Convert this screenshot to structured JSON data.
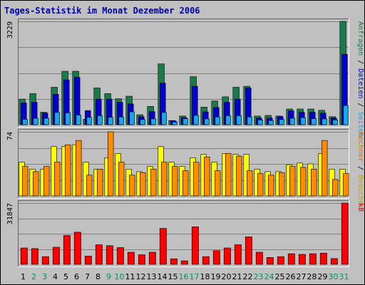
{
  "chart_data": {
    "type": "bar",
    "title": "Tages-Statistik im Monat Dezember 2006",
    "x": [
      "1",
      "2",
      "3",
      "4",
      "5",
      "6",
      "7",
      "8",
      "9",
      "10",
      "11",
      "12",
      "13",
      "14",
      "15",
      "16",
      "17",
      "18",
      "19",
      "20",
      "21",
      "22",
      "23",
      "24",
      "25",
      "26",
      "27",
      "28",
      "29",
      "30",
      "31"
    ],
    "weekend_days": [
      2,
      3,
      9,
      10,
      16,
      17,
      23,
      24,
      30,
      31
    ],
    "panels": [
      {
        "name": "top",
        "ymax_label": "3229",
        "ymax": 3229,
        "right_labels": [
          {
            "text": "Anfragen",
            "color": "#1a7a4a"
          },
          {
            "text": " / ",
            "color": "#000000"
          },
          {
            "text": "Dateien",
            "color": "#0000cc"
          },
          {
            "text": " / ",
            "color": "#000000"
          },
          {
            "text": "Seiten",
            "color": "#1aa7e6"
          }
        ],
        "series": [
          {
            "name": "Anfragen",
            "color": "#1a7a4a",
            "values": [
              800,
              970,
              390,
              1170,
              1670,
              1670,
              170,
              1150,
              970,
              810,
              890,
              310,
              570,
              1900,
              130,
              270,
              1500,
              550,
              740,
              870,
              1170,
              1200,
              270,
              290,
              270,
              490,
              490,
              490,
              450,
              250,
              3229
            ]
          },
          {
            "name": "Dateien",
            "color": "#0000cc",
            "values": [
              680,
              700,
              360,
              950,
              1400,
              1480,
              440,
              800,
              800,
              700,
              650,
              250,
              410,
              1300,
              120,
              220,
              1200,
              400,
              540,
              700,
              800,
              1150,
              210,
              210,
              250,
              430,
              390,
              390,
              360,
              210,
              2200
            ]
          },
          {
            "name": "Seiten",
            "color": "#1aa7e6",
            "values": [
              170,
              200,
              200,
              380,
              370,
              300,
              230,
              280,
              230,
              240,
              400,
              160,
              180,
              380,
              80,
              190,
              290,
              180,
              240,
              280,
              280,
              240,
              150,
              130,
              160,
              200,
              220,
              190,
              180,
              150,
              600
            ]
          }
        ]
      },
      {
        "name": "middle",
        "ymax_label": "74",
        "ymax": 74,
        "right_labels": [
          {
            "text": "Rechner",
            "color": "#e07000"
          },
          {
            "text": " / ",
            "color": "#000000"
          },
          {
            "text": "Besuche",
            "color": "#c8a000"
          }
        ],
        "series": [
          {
            "name": "Besuche",
            "color": "#ffff00",
            "values": [
              39,
              31,
              31,
              57,
              57,
              59,
              39,
              31,
              44,
              49,
              31,
              28,
              34,
              57,
              39,
              34,
              44,
              48,
              39,
              49,
              48,
              48,
              31,
              28,
              28,
              36,
              38,
              37,
              49,
              31,
              31
            ]
          },
          {
            "name": "Rechner",
            "color": "#ff8c00",
            "values": [
              34,
              28,
              34,
              39,
              59,
              64,
              24,
              31,
              74,
              39,
              24,
              27,
              31,
              39,
              34,
              29,
              39,
              45,
              29,
              49,
              46,
              29,
              26,
              24,
              27,
              34,
              33,
              31,
              64,
              19,
              26
            ]
          }
        ]
      },
      {
        "name": "bottom",
        "ymax_label": "31847",
        "ymax": 31847,
        "right_labels": [
          {
            "text": "kB",
            "color": "#cc0000"
          }
        ],
        "series": [
          {
            "name": "kB",
            "color": "#ff0000",
            "values": [
              8500,
              8200,
              4000,
              8900,
              15000,
              16700,
              4300,
              10200,
              9700,
              8700,
              6300,
              5000,
              6300,
              18700,
              2900,
              1800,
              19500,
              4000,
              7100,
              8500,
              10200,
              14300,
              6300,
              3600,
              4000,
              5500,
              5200,
              5500,
              5800,
              3000,
              31847
            ]
          }
        ]
      }
    ]
  }
}
